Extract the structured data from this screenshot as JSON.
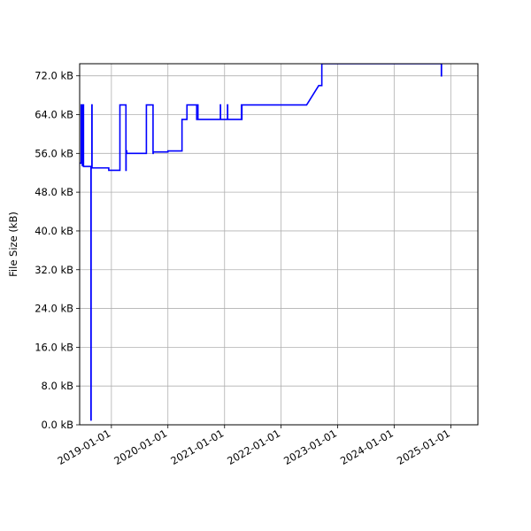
{
  "chart_data": {
    "type": "line",
    "title": "",
    "xlabel": "",
    "ylabel": "File Size (kB)",
    "x_axis_type": "date",
    "xlim": [
      "2018-06-10",
      "2025-06-25"
    ],
    "ylim": [
      0,
      74.5
    ],
    "grid": true,
    "line_color": "#0000ff",
    "grid_color": "#b0b0b0",
    "x_ticks": [
      "2019-01-01",
      "2020-01-01",
      "2021-01-01",
      "2022-01-01",
      "2023-01-01",
      "2024-01-01",
      "2025-01-01"
    ],
    "y_ticks": [
      {
        "value": 0,
        "label": "0.0 kB"
      },
      {
        "value": 8,
        "label": "8.0 kB"
      },
      {
        "value": 16,
        "label": "16.0 kB"
      },
      {
        "value": 24,
        "label": "24.0 kB"
      },
      {
        "value": 32,
        "label": "32.0 kB"
      },
      {
        "value": 40,
        "label": "40.0 kB"
      },
      {
        "value": 48,
        "label": "48.0 kB"
      },
      {
        "value": 56,
        "label": "56.0 kB"
      },
      {
        "value": 64,
        "label": "64.0 kB"
      },
      {
        "value": 72,
        "label": "72.0 kB"
      }
    ],
    "series": [
      {
        "x": [
          "2018-06-10",
          "2018-06-20",
          "2018-06-20",
          "2018-06-22",
          "2018-06-22",
          "2018-06-25",
          "2018-06-25",
          "2018-06-27",
          "2018-06-27",
          "2018-06-29",
          "2018-06-29",
          "2018-07-01",
          "2018-07-01",
          "2018-07-03",
          "2018-07-03",
          "2018-07-05",
          "2018-07-05",
          "2018-08-22",
          "2018-08-22",
          "2018-08-23",
          "2018-08-23",
          "2018-08-28",
          "2018-08-28",
          "2018-08-29",
          "2018-08-29",
          "2018-12-15",
          "2018-12-15",
          "2019-02-25",
          "2019-02-25",
          "2019-04-05",
          "2019-04-05",
          "2019-04-06",
          "2019-04-06",
          "2019-04-10",
          "2019-04-10",
          "2019-07-15",
          "2019-07-15",
          "2019-08-15",
          "2019-08-15",
          "2019-09-27",
          "2019-09-27",
          "2019-09-28",
          "2019-09-28",
          "2020-01-01",
          "2020-01-01",
          "2020-04-01",
          "2020-04-01",
          "2020-05-03",
          "2020-05-03",
          "2020-07-05",
          "2020-07-05",
          "2020-07-06",
          "2020-07-06",
          "2020-07-13",
          "2020-07-13",
          "2020-07-14",
          "2020-07-14",
          "2020-12-05",
          "2020-12-05",
          "2020-12-06",
          "2020-12-06",
          "2021-01-20",
          "2021-01-20",
          "2021-01-21",
          "2021-01-21",
          "2021-04-20",
          "2021-04-20",
          "2021-04-22",
          "2021-04-22",
          "2021-04-23",
          "2021-04-23",
          "2022-06-15",
          "2022-09-01",
          "2022-09-21",
          "2022-09-21",
          "2022-09-22",
          "2022-09-22",
          "2024-11-01",
          "2024-11-01",
          "2024-11-02",
          "2024-11-02"
        ],
        "y": [
          54,
          54,
          66,
          66,
          54,
          54,
          66,
          66,
          53.5,
          53.5,
          66,
          66,
          53.5,
          53.5,
          66,
          66,
          53.3,
          53.3,
          1,
          1,
          53.3,
          53.3,
          66,
          66,
          53,
          53,
          52.5,
          52.5,
          66,
          66,
          52.5,
          52.5,
          56.5,
          56.5,
          56,
          56,
          56,
          56,
          66,
          66,
          56,
          56,
          56.3,
          56.3,
          56.5,
          56.5,
          63,
          63,
          66,
          66,
          63,
          63,
          66,
          66,
          63,
          63,
          63,
          63,
          66,
          66,
          63,
          63,
          66,
          66,
          63,
          63,
          66,
          66,
          63,
          63,
          66,
          66,
          70,
          70,
          74.5,
          74.5,
          74.5,
          74.5,
          72,
          72,
          74.5
        ]
      }
    ]
  }
}
